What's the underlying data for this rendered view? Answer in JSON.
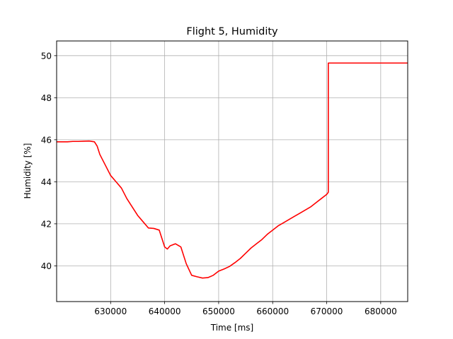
{
  "chart_data": {
    "type": "line",
    "title": "Flight 5, Humidity",
    "xlabel": "Time [ms]",
    "ylabel": "Humidity [%]",
    "xlim": [
      620000,
      685000
    ],
    "ylim": [
      38.3,
      50.7
    ],
    "xticks": [
      630000,
      640000,
      650000,
      660000,
      670000,
      680000
    ],
    "xtick_labels": [
      "630000",
      "640000",
      "650000",
      "660000",
      "670000",
      "680000"
    ],
    "yticks": [
      40,
      42,
      44,
      46,
      48,
      50
    ],
    "ytick_labels": [
      "40",
      "42",
      "44",
      "46",
      "48",
      "50"
    ],
    "grid": true,
    "legend": "none",
    "series": [
      {
        "color": "#ff0000",
        "x": [
          620000,
          621000,
          622000,
          623000,
          624000,
          625000,
          626000,
          627000,
          627500,
          628000,
          629000,
          630000,
          631000,
          632000,
          633000,
          634000,
          635000,
          636000,
          637000,
          638000,
          639000,
          640000,
          640500,
          641000,
          642000,
          643000,
          644000,
          645000,
          646000,
          647000,
          648000,
          649000,
          650000,
          651000,
          652000,
          653000,
          654000,
          655000,
          656000,
          657000,
          658000,
          659000,
          660000,
          661000,
          662000,
          663000,
          664000,
          665000,
          666000,
          667000,
          668000,
          669000,
          670000,
          670300,
          670300,
          675000,
          680000,
          685000
        ],
        "y": [
          45.9,
          45.9,
          45.9,
          45.92,
          45.92,
          45.93,
          45.94,
          45.9,
          45.7,
          45.3,
          44.8,
          44.3,
          44.0,
          43.7,
          43.2,
          42.8,
          42.4,
          42.1,
          41.8,
          41.78,
          41.7,
          40.9,
          40.8,
          40.95,
          41.05,
          40.9,
          40.1,
          39.55,
          39.48,
          39.42,
          39.44,
          39.55,
          39.75,
          39.85,
          39.97,
          40.15,
          40.35,
          40.6,
          40.85,
          41.05,
          41.25,
          41.5,
          41.7,
          41.9,
          42.05,
          42.2,
          42.35,
          42.5,
          42.65,
          42.8,
          43.0,
          43.2,
          43.4,
          43.5,
          49.65,
          49.65,
          49.65,
          49.65
        ]
      }
    ]
  }
}
